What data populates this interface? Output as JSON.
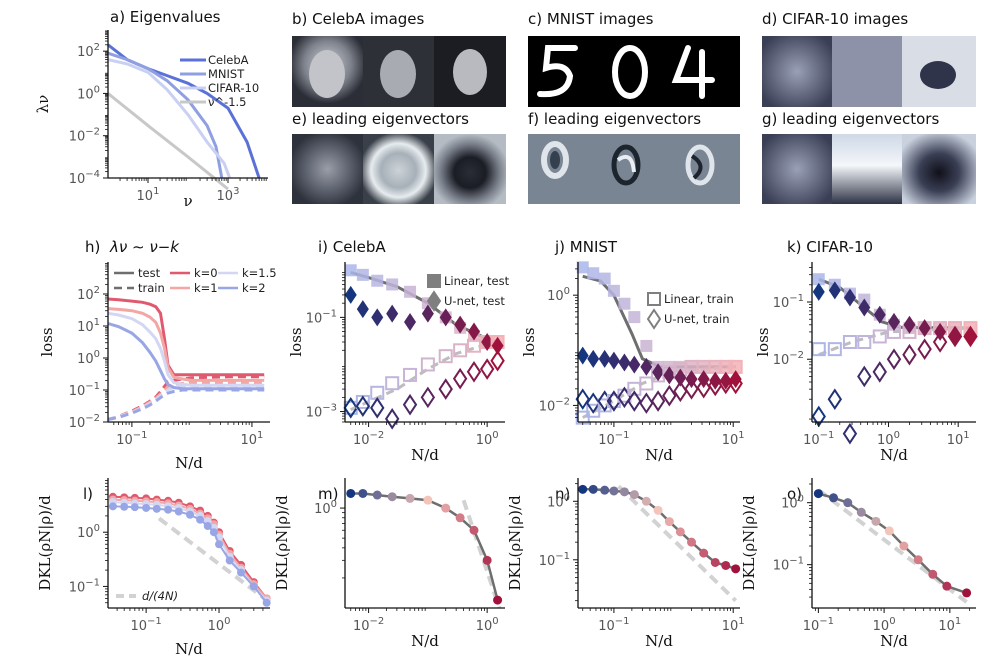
{
  "figure": {
    "panel_titles": {
      "a": "a) Eigenvalues",
      "b": "b) CelebA images",
      "c": "c) MNIST images",
      "d": "d) CIFAR-10 images",
      "e": "e) leading eigenvectors",
      "f": "f) leading eigenvectors",
      "g": "g) leading eigenvectors",
      "h": "h)",
      "h_law": "λν ∼ ν−k",
      "i": "i) CelebA",
      "j": "j) MNIST",
      "k": "k) CIFAR-10",
      "l": "l)",
      "m": "m)",
      "n": "n)",
      "o": "o)"
    },
    "colors": {
      "celeba": "#5a72d8",
      "mnist": "#8e9fe2",
      "cifar": "#c9d0f2",
      "powerlaw": "#c8c8c8",
      "fit": "#6e6e6e",
      "ref": "#d2d2d2",
      "k0": "#e05a6f",
      "k1": "#f2a7a5",
      "k15": "#d3d7f3",
      "k2": "#99a6e6",
      "cold": "#14367e",
      "hot": "#a0123c"
    }
  },
  "chart_data": [
    {
      "panel": "a",
      "type": "line",
      "title": "a) Eigenvalues",
      "xlabel": "ν",
      "ylabel": "λν",
      "xscale": "log",
      "yscale": "log",
      "xlim": [
        1,
        10000
      ],
      "ylim": [
        0.0001,
        1000
      ],
      "xticks": [
        "10^1",
        "10^3"
      ],
      "yticks": [
        "10^2",
        "10^0",
        "10^-2",
        "10^-4"
      ],
      "legend": [
        "CelebA",
        "MNIST",
        "CIFAR-10",
        "ν^-1.5"
      ],
      "legend_position": "right",
      "series": [
        {
          "name": "CelebA",
          "x": [
            1,
            3,
            10,
            30,
            100,
            300,
            1000,
            3000,
            6000
          ],
          "y": [
            200,
            40,
            15,
            7,
            3,
            1,
            0.2,
            0.005,
            0.0001
          ]
        },
        {
          "name": "MNIST",
          "x": [
            1,
            3,
            10,
            30,
            100,
            300,
            500,
            700
          ],
          "y": [
            80,
            40,
            15,
            4,
            0.5,
            0.03,
            0.003,
            0.0001
          ]
        },
        {
          "name": "CIFAR-10",
          "x": [
            1,
            3,
            10,
            30,
            100,
            300,
            800,
            1100
          ],
          "y": [
            40,
            25,
            10,
            1.5,
            0.1,
            0.005,
            0.0005,
            0.0001
          ]
        },
        {
          "name": "ν^-1.5",
          "x": [
            1,
            10,
            100,
            1000
          ],
          "y": [
            1,
            0.03,
            0.001,
            3e-05
          ]
        }
      ]
    },
    {
      "panel": "h",
      "type": "line",
      "title": "h) λν ∼ ν−k",
      "xlabel": "N/d",
      "ylabel": "loss",
      "xscale": "log",
      "yscale": "log",
      "xlim": [
        0.04,
        20
      ],
      "ylim": [
        0.01,
        1000
      ],
      "xticks": [
        "10^-1",
        "10^1"
      ],
      "yticks": [
        "10^2",
        "10^1",
        "10^0",
        "10^-1",
        "10^-2"
      ],
      "legend": [
        "test",
        "train",
        "k=0",
        "k=1",
        "k=1.5",
        "k=2"
      ],
      "legend_position": "top",
      "x": [
        0.04,
        0.06,
        0.1,
        0.15,
        0.2,
        0.25,
        0.3,
        0.35,
        0.4,
        0.5,
        0.7,
        1,
        2,
        5,
        10,
        16
      ],
      "series": [
        {
          "name": "k=0",
          "test": [
            70,
            66,
            60,
            55,
            48,
            40,
            25,
            4,
            0.6,
            0.3,
            0.3,
            0.3,
            0.3,
            0.3,
            0.3,
            0.3
          ],
          "train": [
            0.012,
            0.015,
            0.022,
            0.032,
            0.045,
            0.06,
            0.09,
            0.13,
            0.18,
            0.2,
            0.22,
            0.24,
            0.25,
            0.26,
            0.26,
            0.26
          ]
        },
        {
          "name": "k=1",
          "test": [
            35,
            33,
            30,
            25,
            19,
            13,
            6,
            2,
            0.5,
            0.25,
            0.22,
            0.2,
            0.2,
            0.2,
            0.2,
            0.2
          ],
          "train": [
            0.012,
            0.015,
            0.021,
            0.03,
            0.042,
            0.055,
            0.075,
            0.1,
            0.13,
            0.15,
            0.16,
            0.17,
            0.17,
            0.17,
            0.17,
            0.17
          ]
        },
        {
          "name": "k=1.5",
          "test": [
            25,
            22,
            17,
            11,
            6.5,
            4,
            2,
            0.8,
            0.3,
            0.17,
            0.15,
            0.14,
            0.14,
            0.14,
            0.14,
            0.14
          ],
          "train": [
            0.012,
            0.015,
            0.02,
            0.028,
            0.038,
            0.05,
            0.065,
            0.085,
            0.1,
            0.12,
            0.125,
            0.13,
            0.13,
            0.13,
            0.13,
            0.13
          ]
        },
        {
          "name": "k=2",
          "test": [
            12,
            9.5,
            6,
            3,
            1.5,
            0.8,
            0.4,
            0.22,
            0.15,
            0.12,
            0.11,
            0.11,
            0.11,
            0.11,
            0.11,
            0.11
          ],
          "train": [
            0.012,
            0.014,
            0.019,
            0.026,
            0.034,
            0.045,
            0.058,
            0.07,
            0.08,
            0.09,
            0.1,
            0.1,
            0.1,
            0.1,
            0.1,
            0.1
          ]
        }
      ]
    },
    {
      "panel": "i",
      "type": "scatter",
      "title": "i) CelebA",
      "xlabel": "N/d",
      "ylabel": "loss",
      "xscale": "log",
      "yscale": "log",
      "xlim": [
        0.004,
        2
      ],
      "ylim": [
        0.0006,
        1.5
      ],
      "xticks": [
        "10^-2",
        "10^0"
      ],
      "yticks": [
        "10^-1",
        "10^-3"
      ],
      "legend": [
        "Linear, test",
        "U-net, test"
      ],
      "legend_position": "top-right",
      "x": [
        0.005,
        0.008,
        0.014,
        0.025,
        0.05,
        0.1,
        0.2,
        0.35,
        0.6,
        1,
        1.5
      ],
      "linear_test": [
        1.0,
        0.8,
        0.6,
        0.5,
        0.35,
        0.2,
        0.1,
        0.06,
        0.04,
        0.03,
        0.03
      ],
      "linear_train": [
        0.0012,
        0.0016,
        0.0025,
        0.004,
        0.006,
        0.01,
        0.015,
        0.02,
        0.025,
        0.03,
        0.03
      ],
      "unet_test": [
        0.3,
        0.15,
        0.1,
        0.12,
        0.08,
        0.12,
        0.1,
        0.07,
        0.05,
        0.03,
        0.025
      ],
      "unet_train": [
        0.0012,
        0.0013,
        0.0012,
        0.0007,
        0.0014,
        0.002,
        0.003,
        0.005,
        0.007,
        0.008,
        0.012
      ],
      "fit_test": [
        {
          "x": 0.005,
          "y": 0.9
        },
        {
          "x": 0.01,
          "y": 0.7
        },
        {
          "x": 0.03,
          "y": 0.45
        },
        {
          "x": 0.1,
          "y": 0.2
        },
        {
          "x": 0.3,
          "y": 0.07
        },
        {
          "x": 1,
          "y": 0.035
        },
        {
          "x": 1.5,
          "y": 0.03
        }
      ],
      "fit_train": [
        {
          "x": 0.005,
          "y": 0.0011
        },
        {
          "x": 0.03,
          "y": 0.003
        },
        {
          "x": 0.1,
          "y": 0.008
        },
        {
          "x": 0.3,
          "y": 0.017
        },
        {
          "x": 1,
          "y": 0.027
        },
        {
          "x": 1.5,
          "y": 0.03
        }
      ]
    },
    {
      "panel": "j",
      "type": "scatter",
      "title": "j) MNIST",
      "xlabel": "N/d",
      "ylabel": "loss",
      "xscale": "log",
      "yscale": "log",
      "xlim": [
        0.025,
        13
      ],
      "ylim": [
        0.005,
        4
      ],
      "xticks": [
        "10^-1",
        "10^1"
      ],
      "yticks": [
        "10^0",
        "10^-2"
      ],
      "legend": [
        "Linear, train",
        "U-net, train"
      ],
      "legend_position": "top-right",
      "x": [
        0.03,
        0.045,
        0.07,
        0.1,
        0.15,
        0.22,
        0.35,
        0.55,
        0.85,
        1.3,
        2,
        3.2,
        5,
        7.5,
        11
      ],
      "linear_test": [
        3.2,
        2.5,
        2.0,
        1.2,
        0.7,
        0.4,
        0.12,
        0.05,
        0.05,
        0.05,
        0.05,
        0.05,
        0.05,
        0.05,
        0.05
      ],
      "linear_train": [
        0.006,
        0.008,
        0.01,
        0.012,
        0.015,
        0.02,
        0.025,
        0.035,
        0.04,
        0.045,
        0.05,
        0.05,
        0.05,
        0.05,
        0.05
      ],
      "unet_test": [
        0.08,
        0.07,
        0.07,
        0.065,
        0.06,
        0.055,
        0.05,
        0.04,
        0.035,
        0.032,
        0.03,
        0.03,
        0.028,
        0.028,
        0.03
      ],
      "unet_train": [
        0.013,
        0.011,
        0.012,
        0.012,
        0.014,
        0.012,
        0.011,
        0.012,
        0.015,
        0.018,
        0.02,
        0.021,
        0.023,
        0.025,
        0.025
      ],
      "fit_test": [
        {
          "x": 0.03,
          "y": 2.2
        },
        {
          "x": 0.06,
          "y": 1.8
        },
        {
          "x": 0.1,
          "y": 1.0
        },
        {
          "x": 0.2,
          "y": 0.2
        },
        {
          "x": 0.3,
          "y": 0.07
        },
        {
          "x": 0.6,
          "y": 0.05
        },
        {
          "x": 11,
          "y": 0.05
        }
      ],
      "fit_train": [
        {
          "x": 0.03,
          "y": 0.006
        },
        {
          "x": 0.1,
          "y": 0.012
        },
        {
          "x": 0.3,
          "y": 0.025
        },
        {
          "x": 1,
          "y": 0.042
        },
        {
          "x": 11,
          "y": 0.05
        }
      ]
    },
    {
      "panel": "k",
      "type": "scatter",
      "title": "k) CIFAR-10",
      "xlabel": "N/d",
      "ylabel": "loss",
      "xscale": "log",
      "yscale": "log",
      "xlim": [
        0.08,
        18
      ],
      "ylim": [
        0.0008,
        0.5
      ],
      "xticks": [
        "10^-1",
        "10^0",
        "10^1"
      ],
      "yticks": [
        "10^-1",
        "10^-2"
      ],
      "x": [
        0.1,
        0.17,
        0.28,
        0.45,
        0.75,
        1.2,
        2,
        3.3,
        5.5,
        9,
        15
      ],
      "linear_test": [
        0.25,
        0.2,
        0.14,
        0.11,
        0.06,
        0.04,
        0.035,
        0.035,
        0.035,
        0.035,
        0.035
      ],
      "linear_train": [
        0.015,
        0.015,
        0.02,
        0.02,
        0.025,
        0.03,
        0.03,
        0.035,
        0.035,
        0.035,
        0.035
      ],
      "unet_test": [
        0.15,
        0.16,
        0.12,
        0.08,
        0.06,
        0.045,
        0.04,
        0.035,
        0.03,
        0.025,
        0.025
      ],
      "unet_train": [
        0.001,
        0.002,
        0.0005,
        0.005,
        0.006,
        0.01,
        0.012,
        0.015,
        0.02,
        0.025,
        0.025
      ],
      "fit_test": [
        {
          "x": 0.1,
          "y": 0.25
        },
        {
          "x": 0.2,
          "y": 0.18
        },
        {
          "x": 0.4,
          "y": 0.09
        },
        {
          "x": 0.8,
          "y": 0.045
        },
        {
          "x": 1.5,
          "y": 0.036
        },
        {
          "x": 15,
          "y": 0.035
        }
      ],
      "fit_train": [
        {
          "x": 0.1,
          "y": 0.012
        },
        {
          "x": 0.3,
          "y": 0.02
        },
        {
          "x": 1,
          "y": 0.03
        },
        {
          "x": 15,
          "y": 0.035
        }
      ]
    },
    {
      "panel": "l",
      "type": "line",
      "title": "l)",
      "xlabel": "N/d",
      "ylabel": "DKL(ρN|ρ)/d",
      "xscale": "log",
      "yscale": "log",
      "xlim": [
        0.03,
        5
      ],
      "ylim": [
        0.04,
        10
      ],
      "xticks": [
        "10^-1",
        "10^0"
      ],
      "yticks": [
        "10^0",
        "10^-1"
      ],
      "legend": [
        "d/(4N)"
      ],
      "legend_position": "bottom-left",
      "x": [
        0.035,
        0.05,
        0.07,
        0.1,
        0.14,
        0.2,
        0.28,
        0.4,
        0.55,
        0.7,
        0.85,
        1,
        1.4,
        2,
        3,
        4.5
      ],
      "series": [
        {
          "name": "k=0",
          "values": [
            4.5,
            4.4,
            4.3,
            4.2,
            4.0,
            3.8,
            3.5,
            3.0,
            2.5,
            2.0,
            1.5,
            1.0,
            0.45,
            0.25,
            0.12,
            0.06
          ]
        },
        {
          "name": "k=1",
          "values": [
            4.0,
            3.9,
            3.8,
            3.7,
            3.6,
            3.4,
            3.1,
            2.7,
            2.2,
            1.8,
            1.4,
            0.9,
            0.4,
            0.22,
            0.11,
            0.06
          ]
        },
        {
          "name": "k=1.5",
          "values": [
            3.6,
            3.5,
            3.4,
            3.3,
            3.2,
            3.0,
            2.8,
            2.4,
            2.0,
            1.6,
            1.2,
            0.8,
            0.35,
            0.2,
            0.1,
            0.055
          ]
        },
        {
          "name": "k=2",
          "values": [
            3.0,
            2.95,
            2.9,
            2.8,
            2.7,
            2.6,
            2.4,
            2.1,
            1.7,
            1.3,
            1.0,
            0.6,
            0.3,
            0.18,
            0.1,
            0.05
          ]
        }
      ],
      "reference": {
        "name": "d/(4N)",
        "x": [
          0.15,
          5
        ],
        "y": [
          1.8,
          0.05
        ]
      }
    },
    {
      "panel": "m",
      "type": "line",
      "title": "m)",
      "xlabel": "N/d",
      "ylabel": "DKL(ρN|ρ)/d",
      "xscale": "log",
      "yscale": "log",
      "xlim": [
        0.004,
        2
      ],
      "ylim": [
        0.1,
        2
      ],
      "xticks": [
        "10^-2",
        "10^0"
      ],
      "yticks": [
        "10^0"
      ],
      "x": [
        0.005,
        0.008,
        0.014,
        0.025,
        0.05,
        0.1,
        0.2,
        0.35,
        0.6,
        1,
        1.5
      ],
      "values": [
        1.4,
        1.4,
        1.35,
        1.3,
        1.25,
        1.2,
        1.0,
        0.8,
        0.6,
        0.3,
        0.12
      ],
      "reference": {
        "x": [
          0.4,
          1.6
        ],
        "y": [
          1.2,
          0.1
        ]
      }
    },
    {
      "panel": "n",
      "type": "line",
      "title": "n)",
      "xlabel": "N/d",
      "ylabel": "DKL(ρN|ρ)/d",
      "xscale": "log",
      "yscale": "log",
      "xlim": [
        0.025,
        13
      ],
      "ylim": [
        0.015,
        2.5
      ],
      "xticks": [
        "10^-1",
        "10^1"
      ],
      "yticks": [
        "10^0",
        "10^-1"
      ],
      "x": [
        0.03,
        0.045,
        0.07,
        0.1,
        0.15,
        0.22,
        0.35,
        0.55,
        0.85,
        1.3,
        2,
        3.2,
        5,
        7.5,
        11
      ],
      "values": [
        1.6,
        1.6,
        1.55,
        1.5,
        1.45,
        1.3,
        1.0,
        0.7,
        0.45,
        0.3,
        0.2,
        0.13,
        0.09,
        0.08,
        0.07
      ],
      "reference": {
        "x": [
          0.12,
          11
        ],
        "y": [
          1.8,
          0.02
        ]
      }
    },
    {
      "panel": "o",
      "type": "line",
      "title": "o)",
      "xlabel": "N/d",
      "ylabel": "DKL(ρN|ρ)/d",
      "xscale": "log",
      "yscale": "log",
      "xlim": [
        0.08,
        25
      ],
      "ylim": [
        0.02,
        2.5
      ],
      "xticks": [
        "10^-1",
        "10^0",
        "10^1"
      ],
      "yticks": [
        "10^0",
        "10^-1"
      ],
      "x": [
        0.1,
        0.17,
        0.28,
        0.45,
        0.75,
        1.2,
        2,
        3.3,
        5.5,
        9,
        18
      ],
      "values": [
        1.4,
        1.2,
        1.0,
        0.7,
        0.5,
        0.35,
        0.2,
        0.12,
        0.07,
        0.045,
        0.035
      ],
      "reference": {
        "x": [
          0.1,
          18
        ],
        "y": [
          1.6,
          0.025
        ]
      }
    }
  ]
}
